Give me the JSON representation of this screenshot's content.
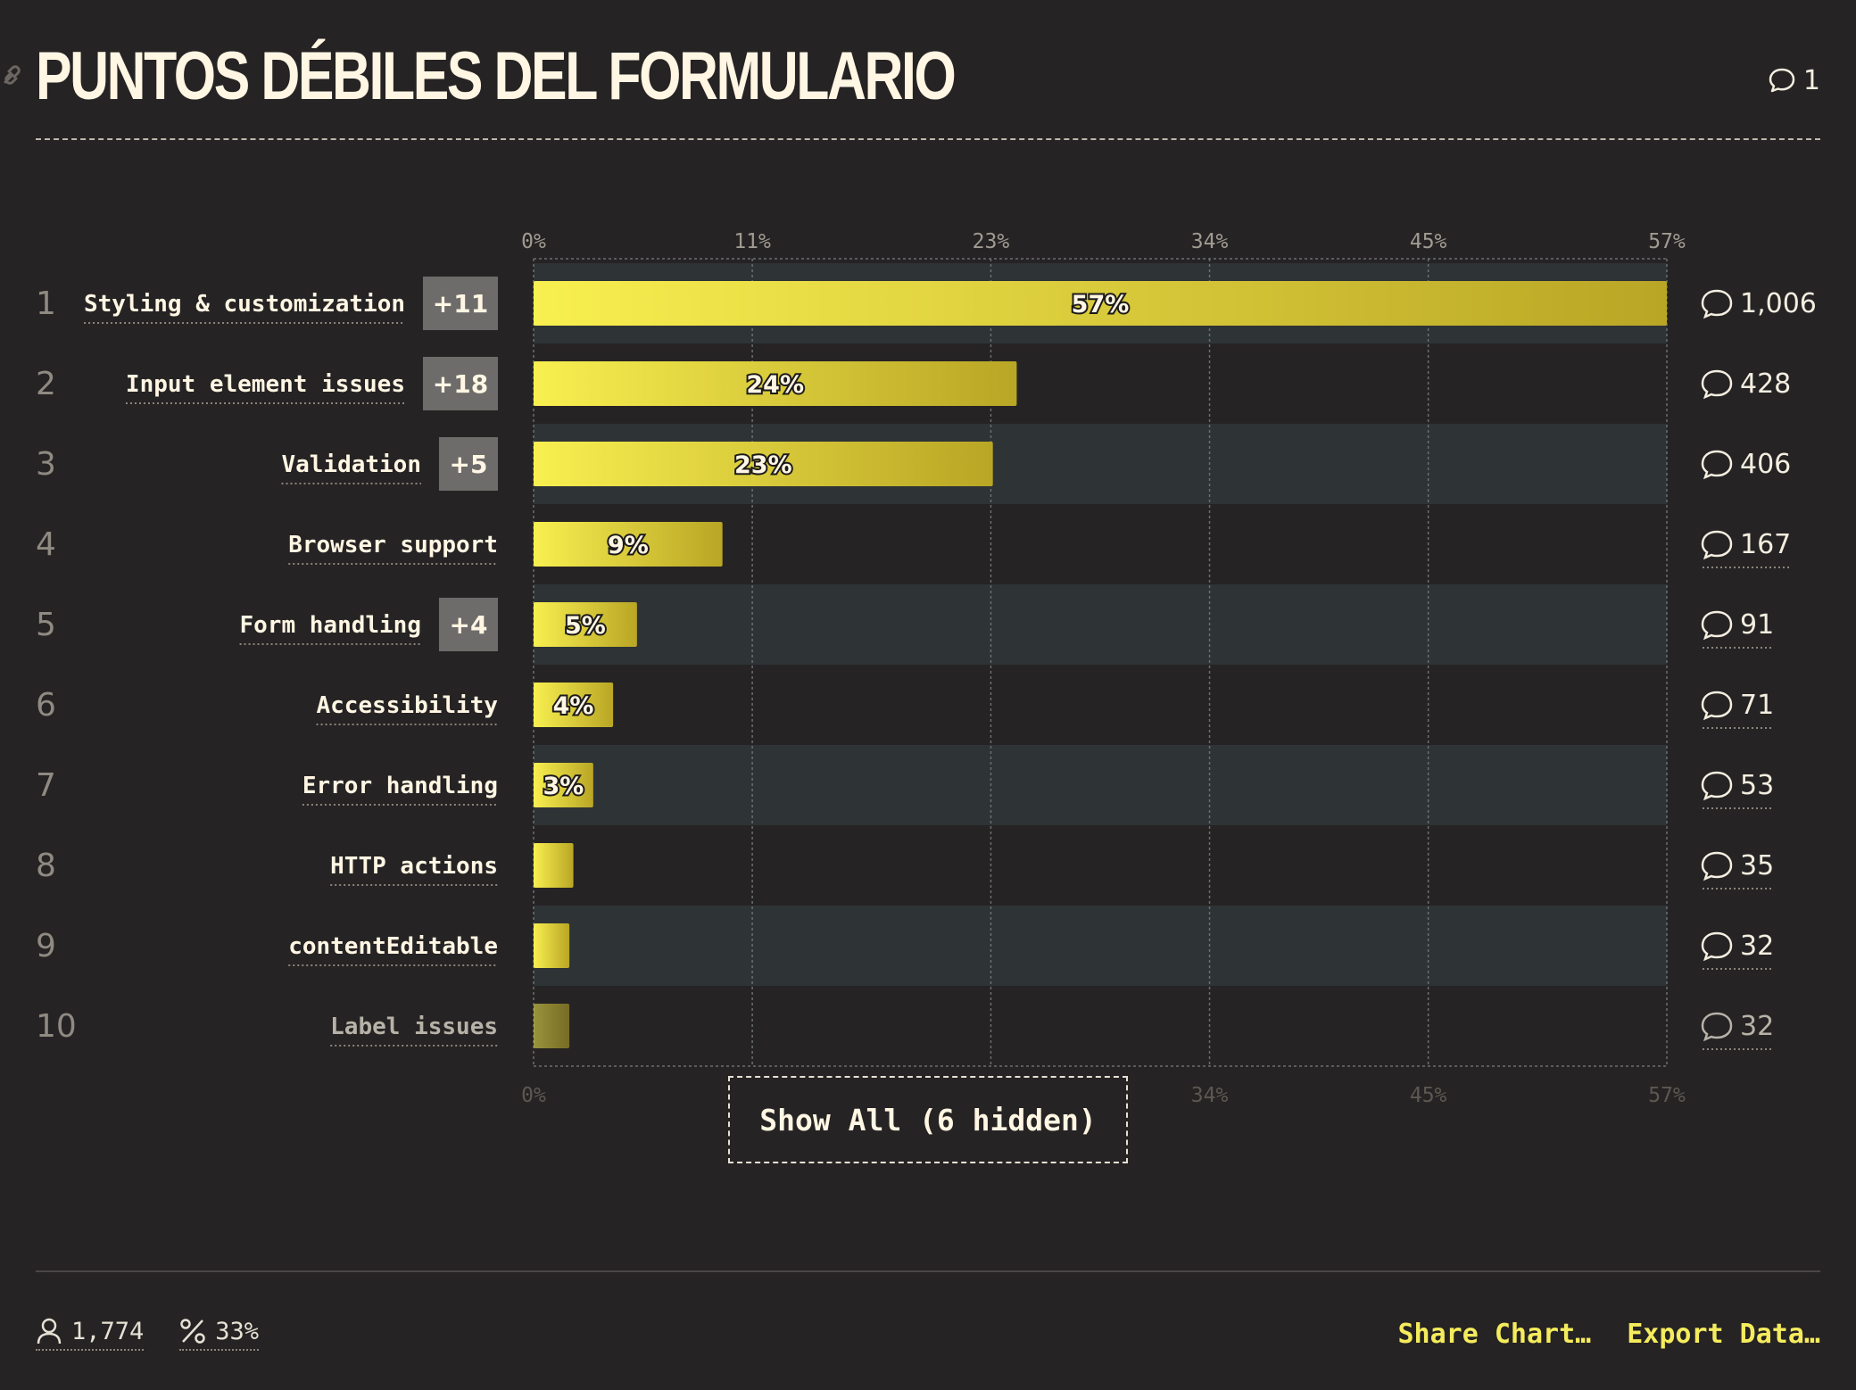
{
  "header": {
    "title": "Puntos débiles del formulario",
    "comment_count": "1"
  },
  "chart_data": {
    "type": "bar",
    "orientation": "horizontal",
    "title": "Puntos débiles del formulario",
    "xlim": [
      0,
      57
    ],
    "x_ticks": [
      "0%",
      "11%",
      "23%",
      "34%",
      "45%",
      "57%"
    ],
    "x_tick_values": [
      0,
      11,
      23,
      34,
      45,
      57
    ],
    "grid": true,
    "rows": [
      {
        "rank": "1",
        "label": "Styling & customization",
        "extra": "+11",
        "value": 57,
        "value_label": "57%",
        "comments": "1,006"
      },
      {
        "rank": "2",
        "label": "Input element issues",
        "extra": "+18",
        "value": 24.3,
        "value_label": "24%",
        "comments": "428"
      },
      {
        "rank": "3",
        "label": "Validation",
        "extra": "+5",
        "value": 23.1,
        "value_label": "23%",
        "comments": "406"
      },
      {
        "rank": "4",
        "label": "Browser support",
        "extra": "",
        "value": 9.5,
        "value_label": "9%",
        "comments": "167"
      },
      {
        "rank": "5",
        "label": "Form handling",
        "extra": "+4",
        "value": 5.2,
        "value_label": "5%",
        "comments": "91"
      },
      {
        "rank": "6",
        "label": "Accessibility",
        "extra": "",
        "value": 4.0,
        "value_label": "4%",
        "comments": "71"
      },
      {
        "rank": "7",
        "label": "Error handling",
        "extra": "",
        "value": 3.0,
        "value_label": "3%",
        "comments": "53"
      },
      {
        "rank": "8",
        "label": "HTTP actions",
        "extra": "",
        "value": 2.0,
        "value_label": "",
        "comments": "35"
      },
      {
        "rank": "9",
        "label": "contentEditable",
        "extra": "",
        "value": 1.8,
        "value_label": "",
        "comments": "32"
      },
      {
        "rank": "10",
        "label": "Label issues",
        "extra": "",
        "value": 1.8,
        "value_label": "",
        "comments": "32",
        "dimmed": true
      }
    ]
  },
  "show_all": "Show All (6 hidden)",
  "footer": {
    "respondents": "1,774",
    "percent": "33%",
    "share": "Share Chart…",
    "export": "Export Data…"
  }
}
